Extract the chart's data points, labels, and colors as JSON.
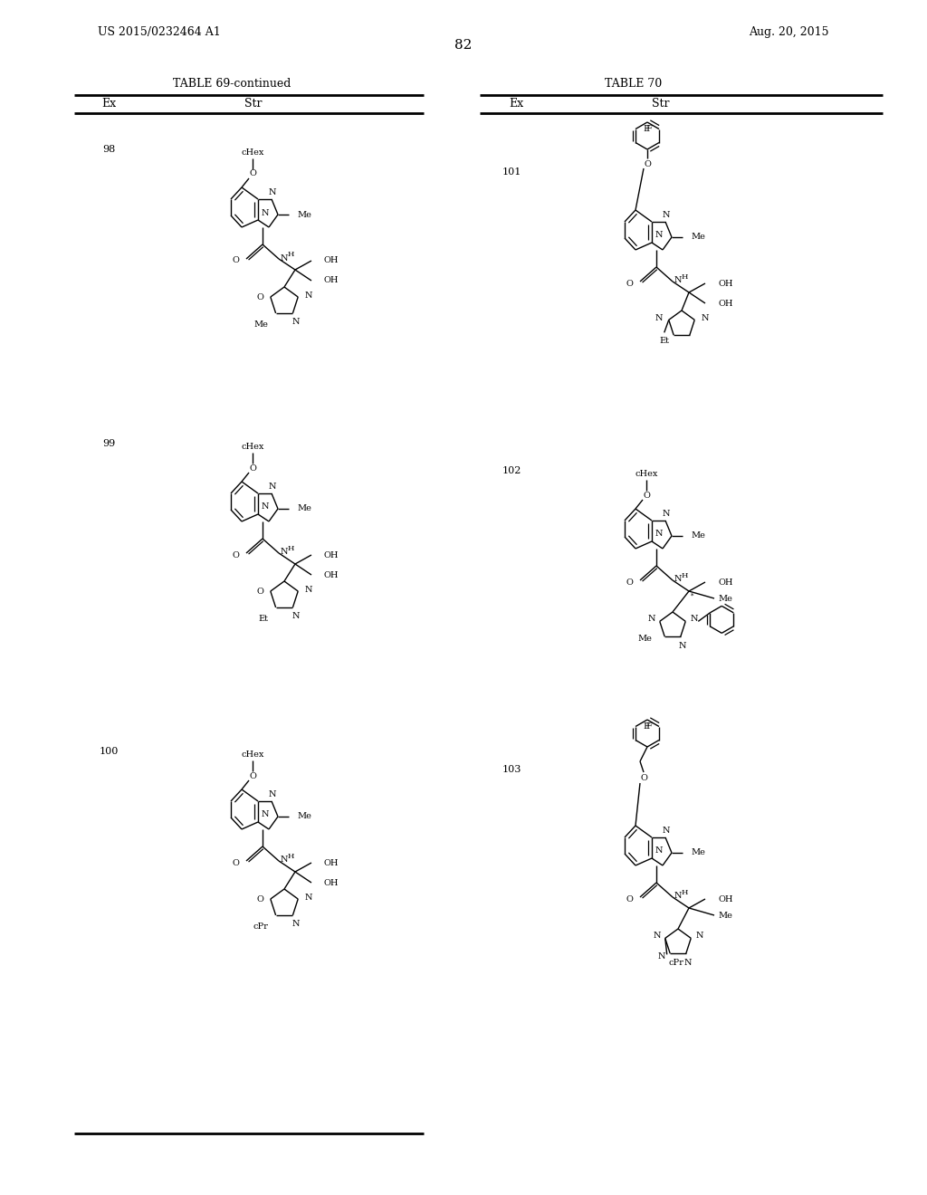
{
  "page_number": "82",
  "patent_number": "US 2015/0232464 A1",
  "patent_date": "Aug. 20, 2015",
  "table_left_title": "TABLE 69-continued",
  "table_right_title": "TABLE 70",
  "background_color": "#ffffff",
  "left_ex_labels": [
    "98",
    "99",
    "100"
  ],
  "right_ex_labels": [
    "101",
    "102",
    "103"
  ],
  "left_tail_labels": [
    "Me",
    "Et",
    "cPr"
  ],
  "right_tail_labels": [
    "Et",
    "Me",
    "cPr"
  ]
}
